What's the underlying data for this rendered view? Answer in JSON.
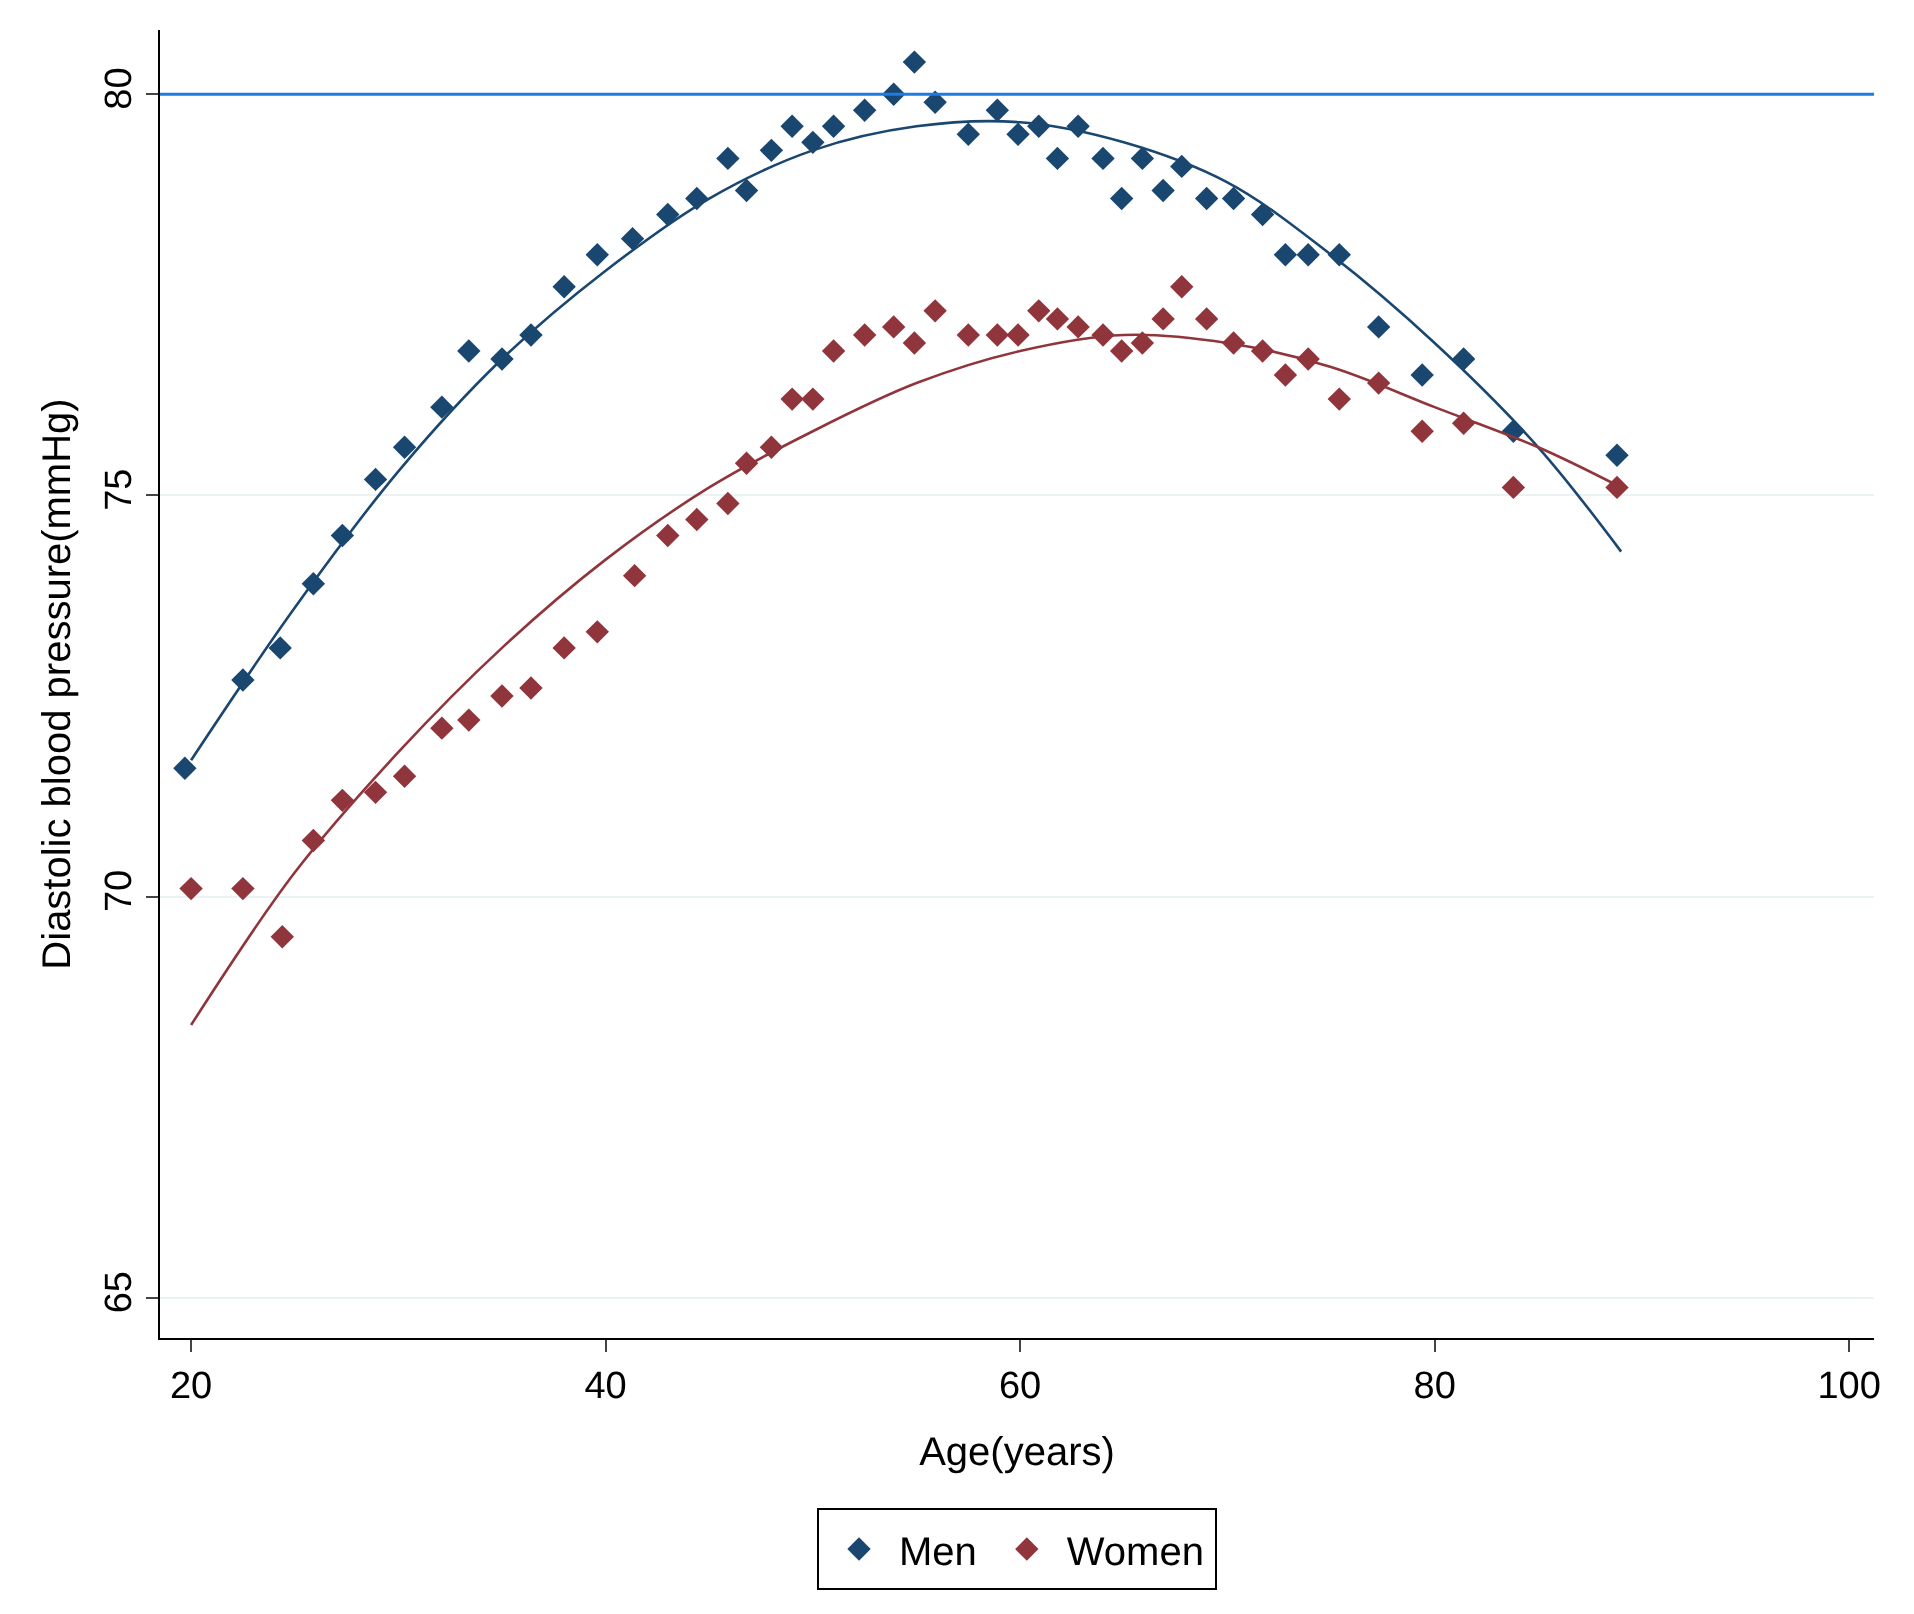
{
  "chart_data": {
    "type": "scatter",
    "xlabel": "Age(years)",
    "ylabel": "Diastolic blood pressure(mmHg)",
    "xlim": [
      18.5,
      101.2
    ],
    "xticks": [
      20,
      40,
      60,
      80,
      100
    ],
    "ylim": [
      64.5,
      80.8
    ],
    "yticks": [
      65,
      70,
      75,
      80
    ],
    "grid": "y",
    "legend": "bottom",
    "marker": "diamond",
    "series": [
      {
        "name": "Men",
        "color": "#1a476f",
        "x": [
          19.7,
          22.5,
          24.3,
          25.9,
          27.3,
          28.9,
          30.3,
          32.1,
          33.4,
          35.0,
          36.4,
          38.0,
          39.6,
          41.3,
          43.0,
          44.4,
          45.9,
          46.8,
          48.0,
          49.0,
          50.0,
          51.0,
          52.5,
          53.9,
          54.9,
          55.9,
          57.5,
          58.9,
          59.9,
          60.9,
          61.8,
          62.8,
          64.0,
          64.9,
          65.9,
          66.9,
          67.8,
          69.0,
          70.3,
          71.7,
          72.8,
          73.9,
          75.4,
          77.3,
          79.4,
          81.4,
          83.8,
          88.8
        ],
        "values": [
          71.6,
          72.7,
          73.1,
          73.9,
          74.5,
          75.2,
          75.6,
          76.1,
          76.8,
          76.7,
          77.0,
          77.6,
          78.0,
          78.2,
          78.5,
          78.7,
          79.2,
          78.8,
          79.3,
          79.6,
          79.4,
          79.6,
          79.8,
          80.0,
          80.4,
          79.9,
          79.5,
          79.8,
          79.5,
          79.6,
          79.2,
          79.6,
          79.2,
          78.7,
          79.2,
          78.8,
          79.1,
          78.7,
          78.7,
          78.5,
          78.0,
          78.0,
          78.0,
          77.1,
          76.5,
          76.7,
          75.8,
          75.5
        ]
      },
      {
        "name": "Women",
        "color": "#90353b",
        "x": [
          20.0,
          22.5,
          24.4,
          25.9,
          27.3,
          28.9,
          30.3,
          32.1,
          33.4,
          35.0,
          36.4,
          38.0,
          39.6,
          41.4,
          43.0,
          44.4,
          45.9,
          46.8,
          48.0,
          49.0,
          50.0,
          51.0,
          52.5,
          53.9,
          54.9,
          55.9,
          57.5,
          58.9,
          59.9,
          60.9,
          61.8,
          62.8,
          64.0,
          64.9,
          65.9,
          66.9,
          67.8,
          69.0,
          70.3,
          71.7,
          72.8,
          73.9,
          75.4,
          77.3,
          79.4,
          81.4,
          83.8,
          88.8
        ],
        "values": [
          70.1,
          70.1,
          69.5,
          70.7,
          71.2,
          71.3,
          71.5,
          72.1,
          72.2,
          72.5,
          72.6,
          73.1,
          73.3,
          74.0,
          74.5,
          74.7,
          74.9,
          75.4,
          75.6,
          76.2,
          76.2,
          76.8,
          77.0,
          77.1,
          76.9,
          77.3,
          77.0,
          77.0,
          77.0,
          77.3,
          77.2,
          77.1,
          77.0,
          76.8,
          76.9,
          77.2,
          77.6,
          77.2,
          76.9,
          76.8,
          76.5,
          76.7,
          76.2,
          76.4,
          75.8,
          75.9,
          75.1,
          75.1
        ]
      },
      {
        "type": "line",
        "marker": "none",
        "color": "#1a476f",
        "x": [
          20,
          25,
          30,
          35,
          40,
          45,
          50,
          55,
          60,
          65,
          70,
          75,
          80,
          85,
          89
        ],
        "values": [
          71.7,
          73.6,
          75.3,
          76.7,
          77.8,
          78.7,
          79.3,
          79.6,
          79.65,
          79.4,
          78.9,
          78.0,
          76.9,
          75.6,
          74.3
        ]
      },
      {
        "type": "line",
        "marker": "none",
        "color": "#90353b",
        "x": [
          20,
          25,
          30,
          35,
          40,
          45,
          50,
          55,
          60,
          65,
          70,
          75,
          80,
          85,
          89
        ],
        "values": [
          68.4,
          70.3,
          71.8,
          73.1,
          74.2,
          75.1,
          75.8,
          76.4,
          76.8,
          77.0,
          76.9,
          76.6,
          76.1,
          75.6,
          75.1
        ]
      }
    ],
    "ref_lines": [
      {
        "axis": "y",
        "value": 80,
        "color": "#1e7be0"
      }
    ]
  }
}
